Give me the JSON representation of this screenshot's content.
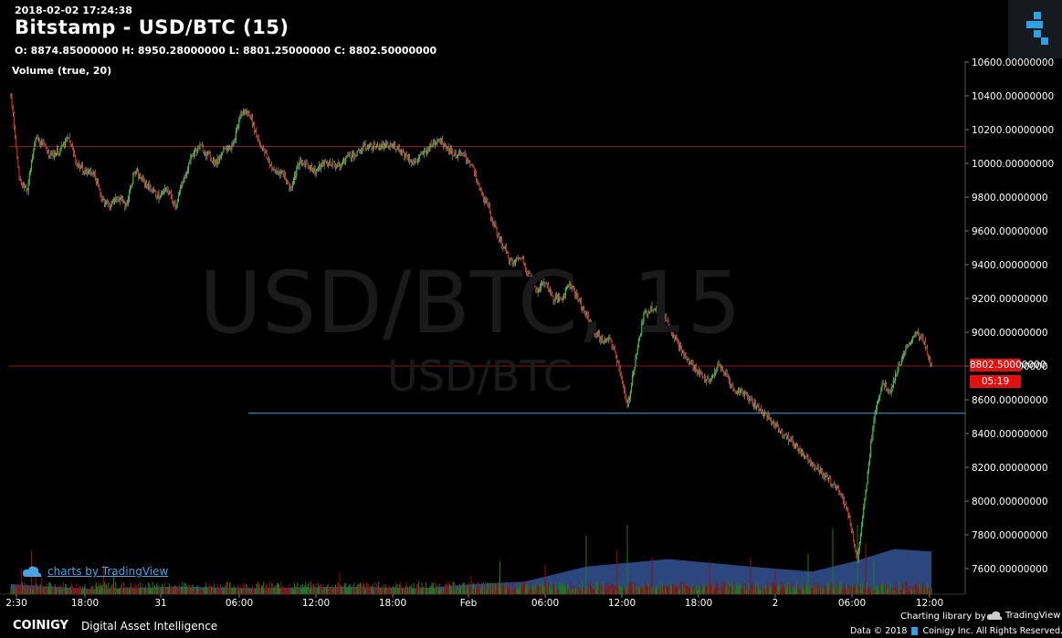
{
  "header": {
    "timestamp": "2018-02-02 17:24:38",
    "title": "Bitstamp - USD/BTC (15)",
    "ohlc": "O: 8874.85000000 H: 8950.28000000 L: 8801.25000000 C: 8802.50000000",
    "volume_label": "Volume (true, 20)"
  },
  "watermark": {
    "big": "USD/BTC, 15",
    "small": "USD/BTC"
  },
  "price_tag": {
    "last": "8802.50000000",
    "countdown": "05:19"
  },
  "credits": {
    "tradingview": "charts by TradingView",
    "brand": "COINIGY",
    "tagline": "Digital Asset Intelligence",
    "charting_library": "Charting library by",
    "tv_name": "TradingView",
    "copyright": "Data © 2018",
    "copyright_owner": "Coinigy Inc. All Rights Reserved."
  },
  "colors": {
    "up": "#2ecc2e",
    "down": "#e31b1b",
    "vol_area": "#3a5fa8",
    "hline_red": "#8b1a1a",
    "hline_blue": "#4aa3c9"
  },
  "chart_data": {
    "type": "candlestick",
    "ylim": [
      7480,
      10620
    ],
    "y_ticks": [
      7600,
      7800,
      8000,
      8200,
      8400,
      8600,
      8800,
      9000,
      9200,
      9400,
      9600,
      9800,
      10000,
      10200,
      10400,
      10600
    ],
    "y_tick_labels": [
      "7600.00000000",
      "7800.00000000",
      "8000.00000000",
      "8200.00000000",
      "8400.00000000",
      "8600.00000000",
      "8800.00000000",
      "9000.00000000",
      "9200.00000000",
      "9400.00000000",
      "9600.00000000",
      "9800.00000000",
      "10000.00000000",
      "10200.00000000",
      "10400.00000000",
      "10600.00000000"
    ],
    "x_ticks": [
      "2:30",
      "18:00",
      "31",
      "06:00",
      "12:00",
      "18:00",
      "Feb",
      "06:00",
      "12:00",
      "18:00",
      "2",
      "06:00",
      "12:00"
    ],
    "horizontal_lines": [
      10100,
      8800,
      8520
    ],
    "close_path": [
      [
        0,
        10400
      ],
      [
        8,
        9900
      ],
      [
        16,
        9850
      ],
      [
        24,
        10150
      ],
      [
        32,
        10100
      ],
      [
        40,
        10050
      ],
      [
        48,
        10080
      ],
      [
        56,
        10150
      ],
      [
        64,
        10000
      ],
      [
        72,
        9950
      ],
      [
        80,
        9950
      ],
      [
        88,
        9800
      ],
      [
        96,
        9750
      ],
      [
        104,
        9800
      ],
      [
        112,
        9750
      ],
      [
        120,
        9950
      ],
      [
        128,
        9900
      ],
      [
        136,
        9850
      ],
      [
        144,
        9800
      ],
      [
        152,
        9850
      ],
      [
        160,
        9750
      ],
      [
        168,
        9900
      ],
      [
        176,
        10050
      ],
      [
        184,
        10100
      ],
      [
        192,
        10050
      ],
      [
        200,
        10000
      ],
      [
        208,
        10100
      ],
      [
        216,
        10100
      ],
      [
        224,
        10300
      ],
      [
        232,
        10300
      ],
      [
        240,
        10150
      ],
      [
        248,
        10050
      ],
      [
        256,
        9950
      ],
      [
        264,
        9950
      ],
      [
        272,
        9850
      ],
      [
        280,
        10000
      ],
      [
        288,
        10000
      ],
      [
        296,
        9950
      ],
      [
        304,
        10000
      ],
      [
        312,
        10000
      ],
      [
        320,
        9980
      ],
      [
        328,
        10050
      ],
      [
        336,
        10050
      ],
      [
        344,
        10100
      ],
      [
        352,
        10100
      ],
      [
        360,
        10100
      ],
      [
        368,
        10100
      ],
      [
        376,
        10100
      ],
      [
        384,
        10050
      ],
      [
        392,
        10000
      ],
      [
        400,
        10050
      ],
      [
        408,
        10100
      ],
      [
        416,
        10150
      ],
      [
        424,
        10100
      ],
      [
        432,
        10050
      ],
      [
        440,
        10050
      ],
      [
        448,
        10000
      ],
      [
        456,
        9850
      ],
      [
        464,
        9750
      ],
      [
        472,
        9600
      ],
      [
        480,
        9500
      ],
      [
        488,
        9400
      ],
      [
        496,
        9450
      ],
      [
        504,
        9350
      ],
      [
        512,
        9250
      ],
      [
        520,
        9300
      ],
      [
        528,
        9200
      ],
      [
        536,
        9200
      ],
      [
        544,
        9300
      ],
      [
        552,
        9200
      ],
      [
        560,
        9100
      ],
      [
        568,
        9000
      ],
      [
        576,
        8950
      ],
      [
        584,
        8950
      ],
      [
        592,
        8800
      ],
      [
        600,
        8550
      ],
      [
        608,
        8850
      ],
      [
        616,
        9100
      ],
      [
        624,
        9150
      ],
      [
        632,
        9150
      ],
      [
        640,
        9050
      ],
      [
        648,
        8950
      ],
      [
        656,
        8850
      ],
      [
        664,
        8800
      ],
      [
        672,
        8750
      ],
      [
        680,
        8700
      ],
      [
        688,
        8800
      ],
      [
        696,
        8750
      ],
      [
        704,
        8650
      ],
      [
        712,
        8650
      ],
      [
        720,
        8600
      ],
      [
        728,
        8550
      ],
      [
        736,
        8500
      ],
      [
        744,
        8450
      ],
      [
        752,
        8400
      ],
      [
        760,
        8350
      ],
      [
        768,
        8300
      ],
      [
        776,
        8250
      ],
      [
        784,
        8200
      ],
      [
        792,
        8150
      ],
      [
        800,
        8100
      ],
      [
        808,
        8050
      ],
      [
        816,
        7900
      ],
      [
        824,
        7650
      ],
      [
        832,
        8050
      ],
      [
        840,
        8500
      ],
      [
        848,
        8700
      ],
      [
        856,
        8650
      ],
      [
        864,
        8800
      ],
      [
        872,
        8900
      ],
      [
        880,
        9000
      ],
      [
        888,
        8950
      ],
      [
        896,
        8800
      ]
    ],
    "volume_path": [
      [
        0,
        0.2
      ],
      [
        80,
        0.1
      ],
      [
        160,
        0.15
      ],
      [
        240,
        0.12
      ],
      [
        320,
        0.15
      ],
      [
        400,
        0.12
      ],
      [
        450,
        0.2
      ],
      [
        500,
        0.25
      ],
      [
        560,
        0.55
      ],
      [
        640,
        0.7
      ],
      [
        720,
        0.55
      ],
      [
        780,
        0.45
      ],
      [
        820,
        0.65
      ],
      [
        860,
        0.9
      ],
      [
        896,
        0.85
      ]
    ],
    "volume_spikes": [
      [
        10,
        0.35
      ],
      [
        20,
        0.6
      ],
      [
        24,
        0.3
      ],
      [
        30,
        0.25
      ],
      [
        90,
        0.4
      ],
      [
        100,
        0.3
      ],
      [
        320,
        0.3
      ],
      [
        448,
        0.25
      ],
      [
        476,
        0.45
      ],
      [
        520,
        0.4
      ],
      [
        560,
        0.8
      ],
      [
        590,
        0.6
      ],
      [
        600,
        0.95
      ],
      [
        624,
        0.5
      ],
      [
        680,
        0.45
      ],
      [
        720,
        0.5
      ],
      [
        744,
        0.35
      ],
      [
        776,
        0.55
      ],
      [
        800,
        0.9
      ],
      [
        824,
        0.95
      ],
      [
        832,
        0.7
      ],
      [
        840,
        0.45
      ]
    ]
  }
}
